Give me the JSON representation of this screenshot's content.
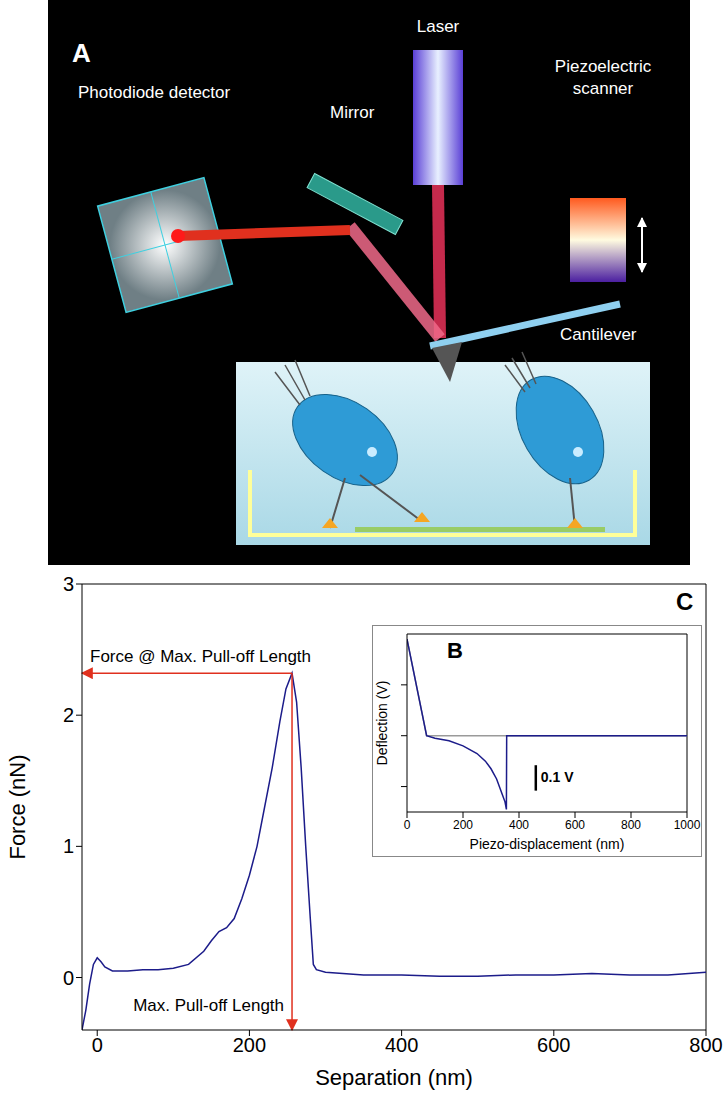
{
  "diagram": {
    "panel": "A",
    "laser": "Laser",
    "detector": "Photodiode detector",
    "mirror": "Mirror",
    "scanner": "Piezoelectric scanner",
    "cantilever": "Cantilever"
  },
  "chart_data": [
    {
      "panel": "C",
      "type": "line",
      "x_label": "Separation (nm)",
      "y_label": "Force (nN)",
      "xlim": [
        -20,
        800
      ],
      "xticks": [
        0,
        200,
        400,
        600,
        800
      ],
      "ylim": [
        -0.4,
        3
      ],
      "yticks": [
        0,
        1,
        2,
        3
      ],
      "series": [
        {
          "color": "#1c1c8a",
          "x": [
            -20,
            -15,
            -10,
            -5,
            0,
            5,
            10,
            20,
            40,
            60,
            80,
            100,
            120,
            140,
            150,
            160,
            170,
            180,
            190,
            200,
            210,
            220,
            230,
            240,
            248,
            256,
            262,
            268,
            274,
            280,
            284,
            288,
            300,
            350,
            400,
            450,
            500,
            550,
            600,
            650,
            700,
            750,
            800
          ],
          "values": [
            -0.4,
            -0.25,
            -0.05,
            0.1,
            0.15,
            0.12,
            0.08,
            0.05,
            0.05,
            0.06,
            0.06,
            0.07,
            0.1,
            0.2,
            0.28,
            0.35,
            0.38,
            0.45,
            0.6,
            0.78,
            1.0,
            1.3,
            1.6,
            1.95,
            2.2,
            2.32,
            2.1,
            1.6,
            1.0,
            0.45,
            0.1,
            0.06,
            0.04,
            0.02,
            0.02,
            0.01,
            0.01,
            0.02,
            0.02,
            0.03,
            0.02,
            0.02,
            0.04
          ]
        }
      ],
      "annotations": [
        {
          "text": "Force @ Max. Pull-off Length",
          "x": 256,
          "y": 2.32,
          "color": "#e0301e"
        },
        {
          "text": "Max. Pull-off Length",
          "x": 256,
          "y": 2.32,
          "color": "#e0301e"
        }
      ]
    },
    {
      "panel": "B",
      "type": "line",
      "x_label": "Piezo-displacement (nm)",
      "y_label": "Deflection (V)",
      "xlim": [
        0,
        1000
      ],
      "xticks": [
        0,
        200,
        400,
        600,
        800,
        1000
      ],
      "ylim": [
        -0.3,
        0.4
      ],
      "yticks": [
        -0.2,
        0,
        0.2
      ],
      "tick_labels": "x",
      "series": [
        {
          "color": "#9a9a9a",
          "x": [
            0,
            70,
            1000
          ],
          "values": [
            0.38,
            0,
            0
          ]
        },
        {
          "color": "#1c1c8a",
          "x": [
            0,
            70,
            100,
            150,
            200,
            250,
            280,
            300,
            320,
            340,
            350,
            355,
            356,
            400,
            600,
            800,
            1000
          ],
          "values": [
            0.38,
            0,
            -0.01,
            -0.02,
            -0.04,
            -0.07,
            -0.1,
            -0.13,
            -0.17,
            -0.23,
            -0.26,
            -0.29,
            0,
            0,
            0,
            0,
            0
          ]
        }
      ],
      "scale_bar": {
        "value": 0.1,
        "label": "0.1 V"
      }
    }
  ]
}
